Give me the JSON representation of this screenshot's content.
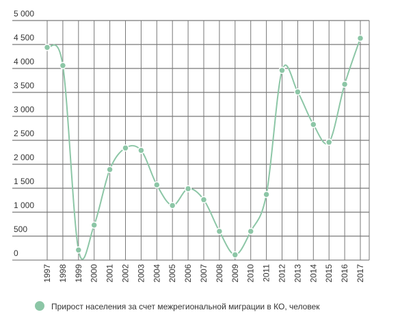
{
  "chart_data": {
    "type": "line",
    "categories": [
      "1997",
      "1998",
      "1999",
      "2000",
      "2001",
      "2002",
      "2003",
      "2004",
      "2005",
      "2006",
      "2007",
      "2008",
      "2009",
      "2010",
      "2011",
      "2012",
      "2013",
      "2014",
      "2015",
      "2016",
      "2017"
    ],
    "series": [
      {
        "name": "Прирост населения за счет межрегиональной миграции в КО, человек",
        "color": "#8cc6a6",
        "values": [
          4440,
          4060,
          210,
          730,
          1890,
          2340,
          2290,
          1570,
          1140,
          1490,
          1260,
          600,
          110,
          600,
          1370,
          3960,
          3510,
          2830,
          2460,
          3670,
          4630
        ]
      }
    ],
    "ylim": [
      0,
      5000
    ],
    "yticks": [
      0,
      500,
      {
        "value": 1000,
        "label": "1 000"
      },
      {
        "value": 1500,
        "label": "1 500"
      },
      {
        "value": 2000,
        "label": "2 000"
      },
      {
        "value": 2500,
        "label": "2 500"
      },
      {
        "value": 3000,
        "label": "3 000"
      },
      {
        "value": 3500,
        "label": "3 500"
      },
      {
        "value": 4000,
        "label": "4 000"
      },
      {
        "value": 4500,
        "label": "4 500"
      },
      {
        "value": 5000,
        "label": "5 000"
      }
    ],
    "grid": true
  }
}
